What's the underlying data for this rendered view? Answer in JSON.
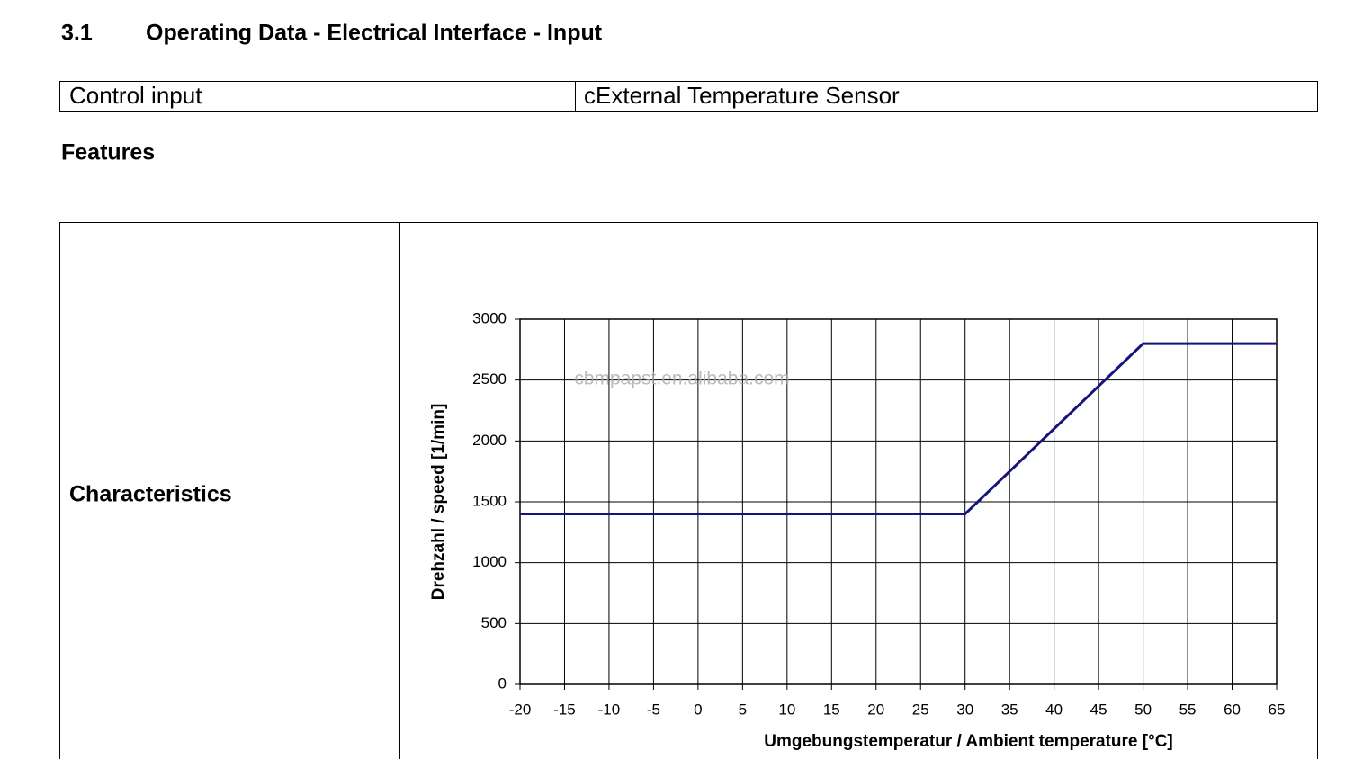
{
  "header": {
    "number": "3.1",
    "title": "Operating Data - Electrical Interface - Input"
  },
  "table": {
    "rows": [
      [
        "Control input",
        "cExternal Temperature Sensor"
      ]
    ]
  },
  "features": {
    "title": "Features",
    "label": "Characteristics"
  },
  "watermark": "cbmpapst.en.alibaba.com",
  "chart_data": {
    "type": "line",
    "x_label": "Umgebungstemperatur / Ambient temperature [°C]",
    "y_label": "Drehzahl / speed [1/min]",
    "x": [
      -20,
      30,
      50,
      65
    ],
    "values": [
      1400,
      1400,
      2800,
      2800
    ],
    "color": "#14147a",
    "xlim": [
      -20,
      65
    ],
    "xticks": [
      -20,
      -15,
      -10,
      -5,
      0,
      5,
      10,
      15,
      20,
      25,
      30,
      35,
      40,
      45,
      50,
      55,
      60,
      65
    ],
    "ylim": [
      0,
      3000
    ],
    "yticks": [
      0,
      500,
      1000,
      1500,
      2000,
      2500,
      3000
    ],
    "grid": true
  }
}
